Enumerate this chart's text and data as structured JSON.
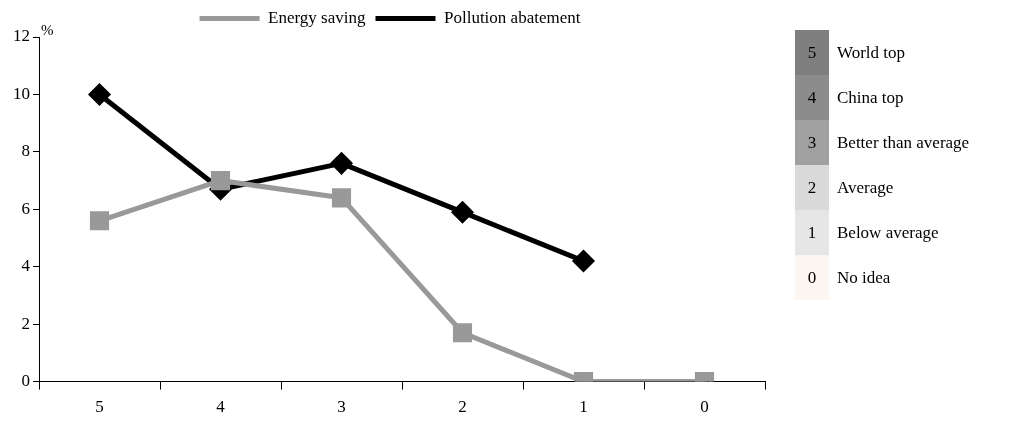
{
  "chart_data": {
    "type": "line",
    "ylabel": "%",
    "categories": [
      "5",
      "4",
      "3",
      "2",
      "1",
      "0"
    ],
    "ylim": [
      0,
      12
    ],
    "yticks": [
      0,
      2,
      4,
      6,
      8,
      10,
      12
    ],
    "grid": false,
    "legend": "top",
    "line_style": "solid",
    "series": [
      {
        "name": "Energy saving",
        "color": "#999999",
        "marker": "square",
        "values": [
          5.6,
          7.0,
          6.4,
          1.7,
          0,
          0
        ]
      },
      {
        "name": "Pollution abatement",
        "color": "#000000",
        "marker": "diamond",
        "values": [
          10.0,
          6.7,
          7.6,
          5.9,
          4.2,
          null
        ]
      }
    ],
    "annotations": [
      "5 World top",
      "4 China top",
      "3 Better than average",
      "2 Average",
      "1 Below average",
      "0 No idea"
    ]
  }
}
